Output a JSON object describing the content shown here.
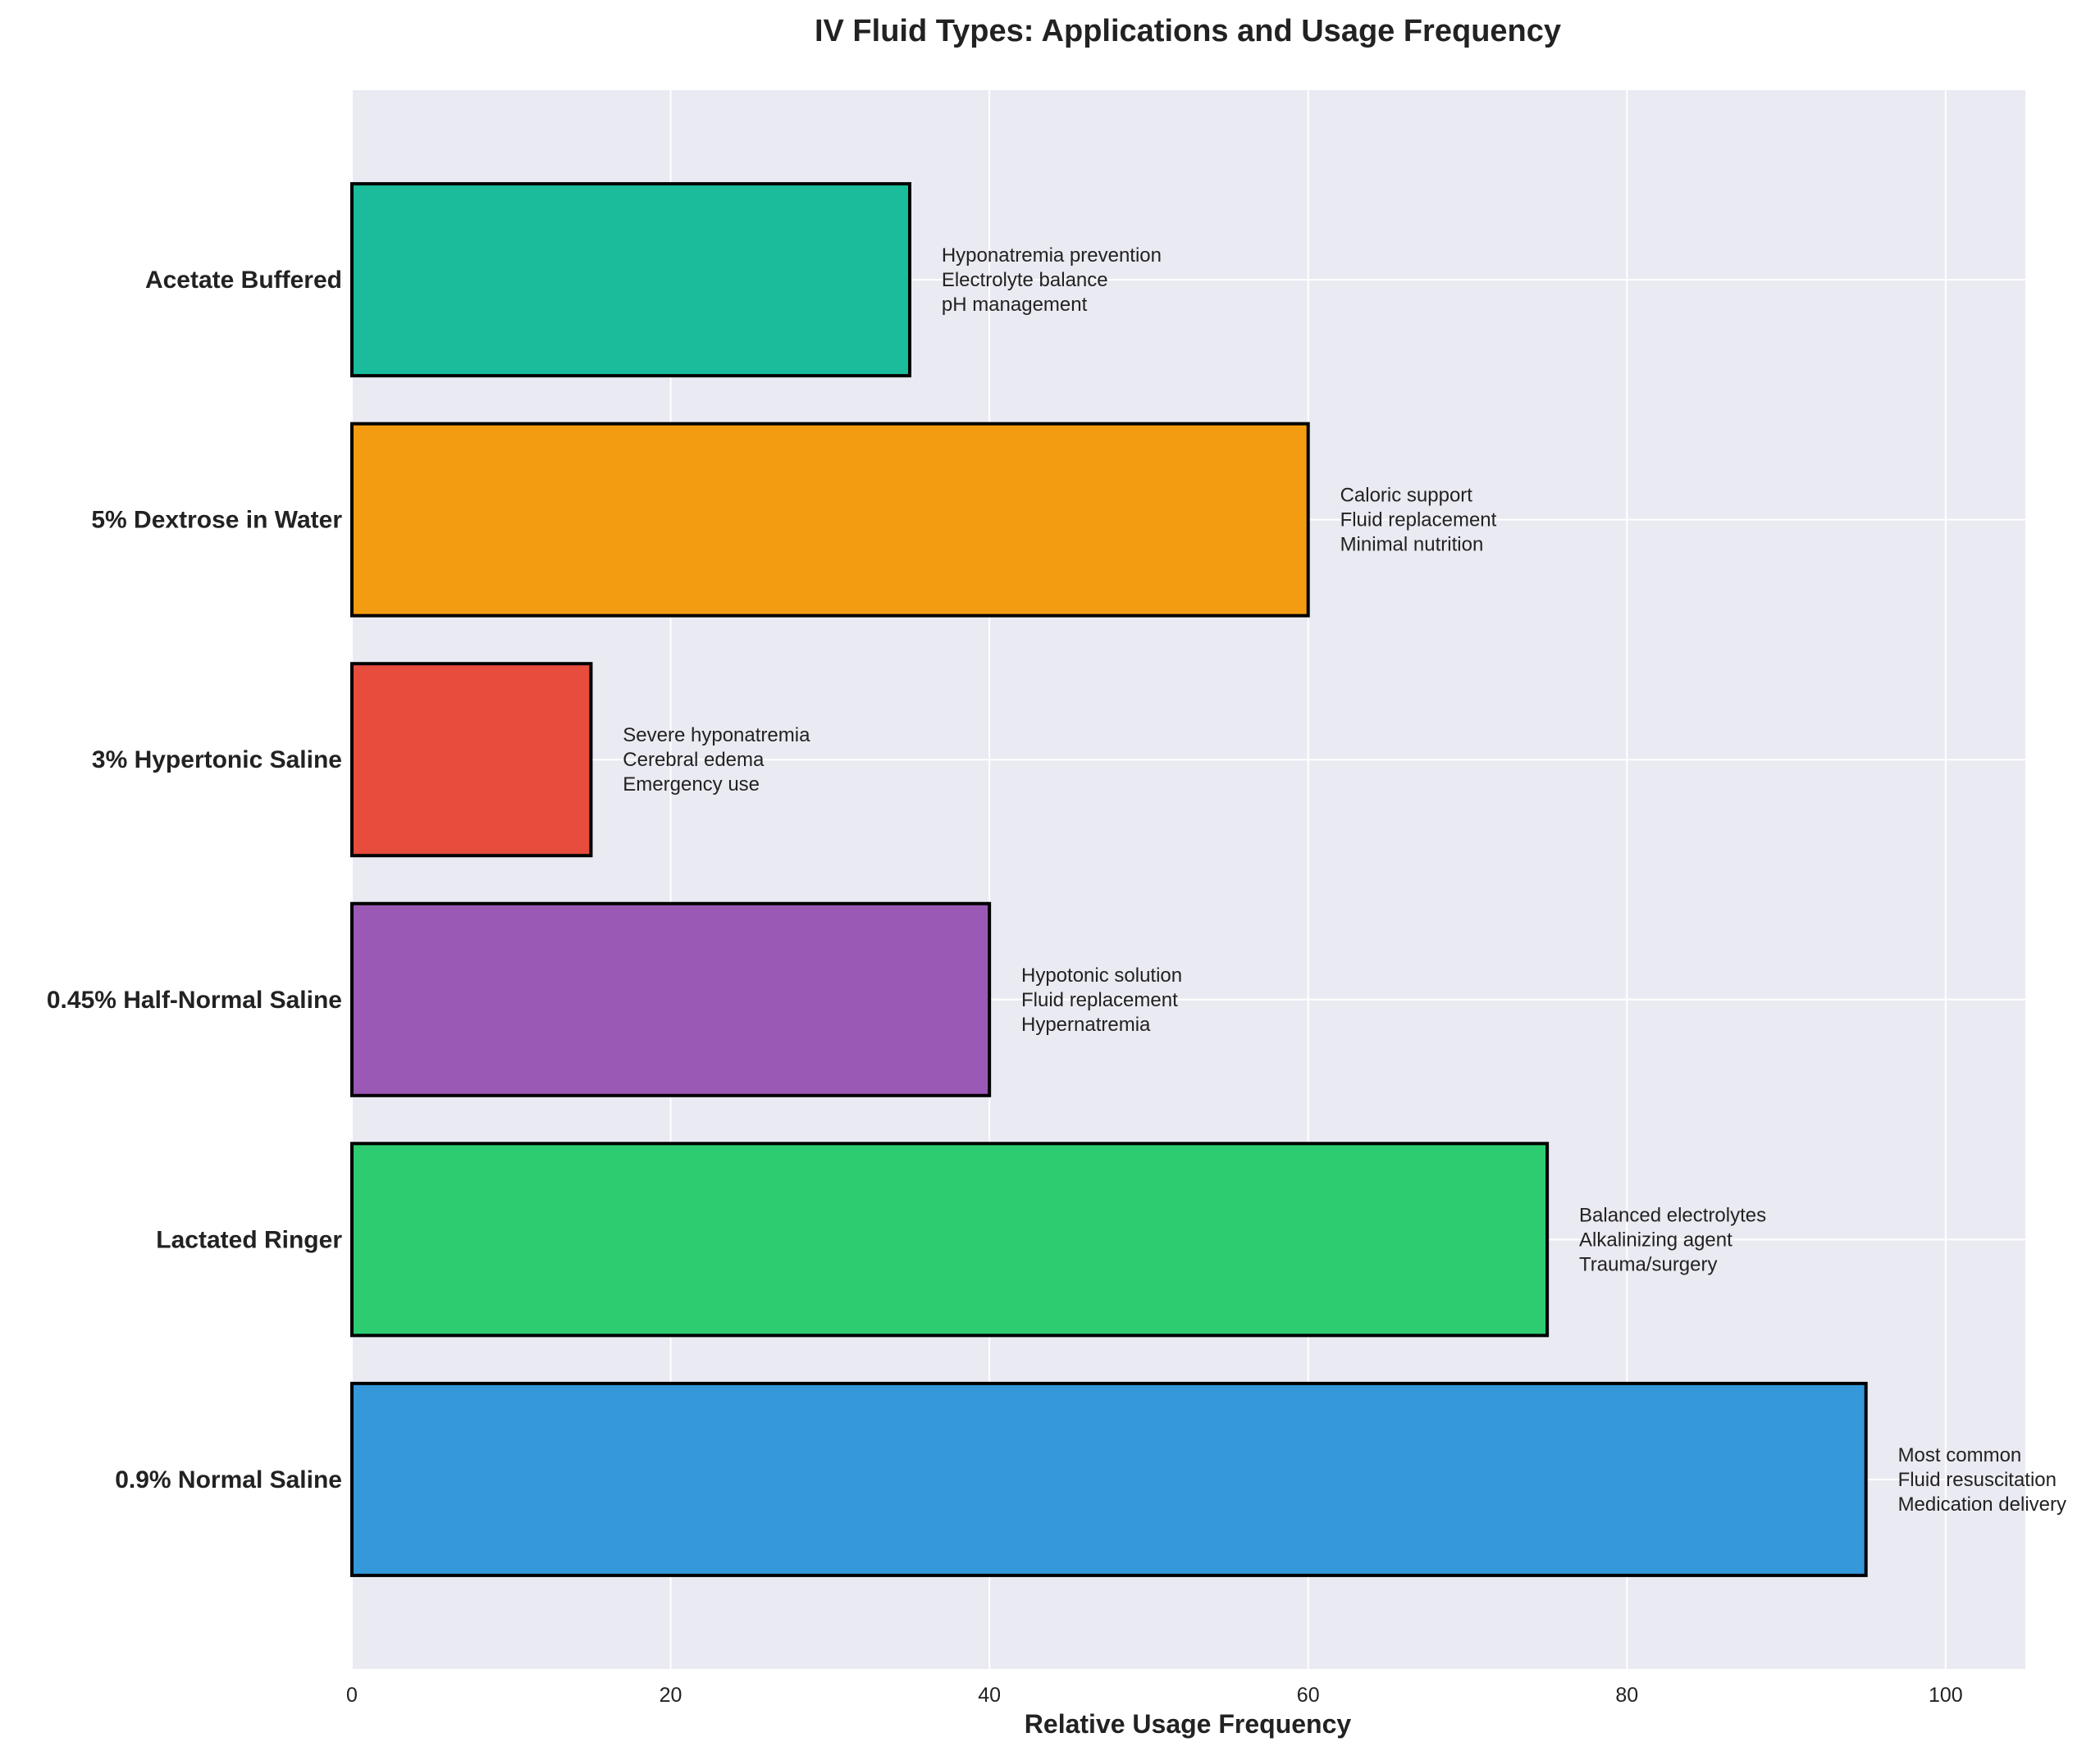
{
  "chart_data": {
    "type": "bar",
    "orientation": "horizontal",
    "title": "IV Fluid Types: Applications and Usage Frequency",
    "xlabel": "Relative Usage Frequency",
    "ylabel": "",
    "xlim": [
      0,
      105
    ],
    "xticks": [
      0,
      20,
      40,
      60,
      80,
      100
    ],
    "grid": true,
    "categories": [
      "0.9% Normal Saline",
      "Lactated Ringer",
      "0.45% Half-Normal Saline",
      "3% Hypertonic Saline",
      "5% Dextrose in Water",
      "Acetate Buffered"
    ],
    "values": [
      95,
      75,
      40,
      15,
      60,
      35
    ],
    "colors": [
      "#3498db",
      "#2ecc71",
      "#9b59b6",
      "#e74c3c",
      "#f39c12",
      "#1abc9c"
    ],
    "annotations": [
      [
        "Most common",
        "Fluid resuscitation",
        "Medication delivery"
      ],
      [
        "Balanced electrolytes",
        "Alkalinizing agent",
        "Trauma/surgery"
      ],
      [
        "Hypotonic solution",
        "Fluid replacement",
        "Hypernatremia"
      ],
      [
        "Severe hyponatremia",
        "Cerebral edema",
        "Emergency use"
      ],
      [
        "Caloric support",
        "Fluid replacement",
        "Minimal nutrition"
      ],
      [
        "Hyponatremia prevention",
        "Electrolyte balance",
        "pH management"
      ]
    ],
    "plot_background": "#eaeaf2",
    "bar_edge_color": "#000000"
  }
}
